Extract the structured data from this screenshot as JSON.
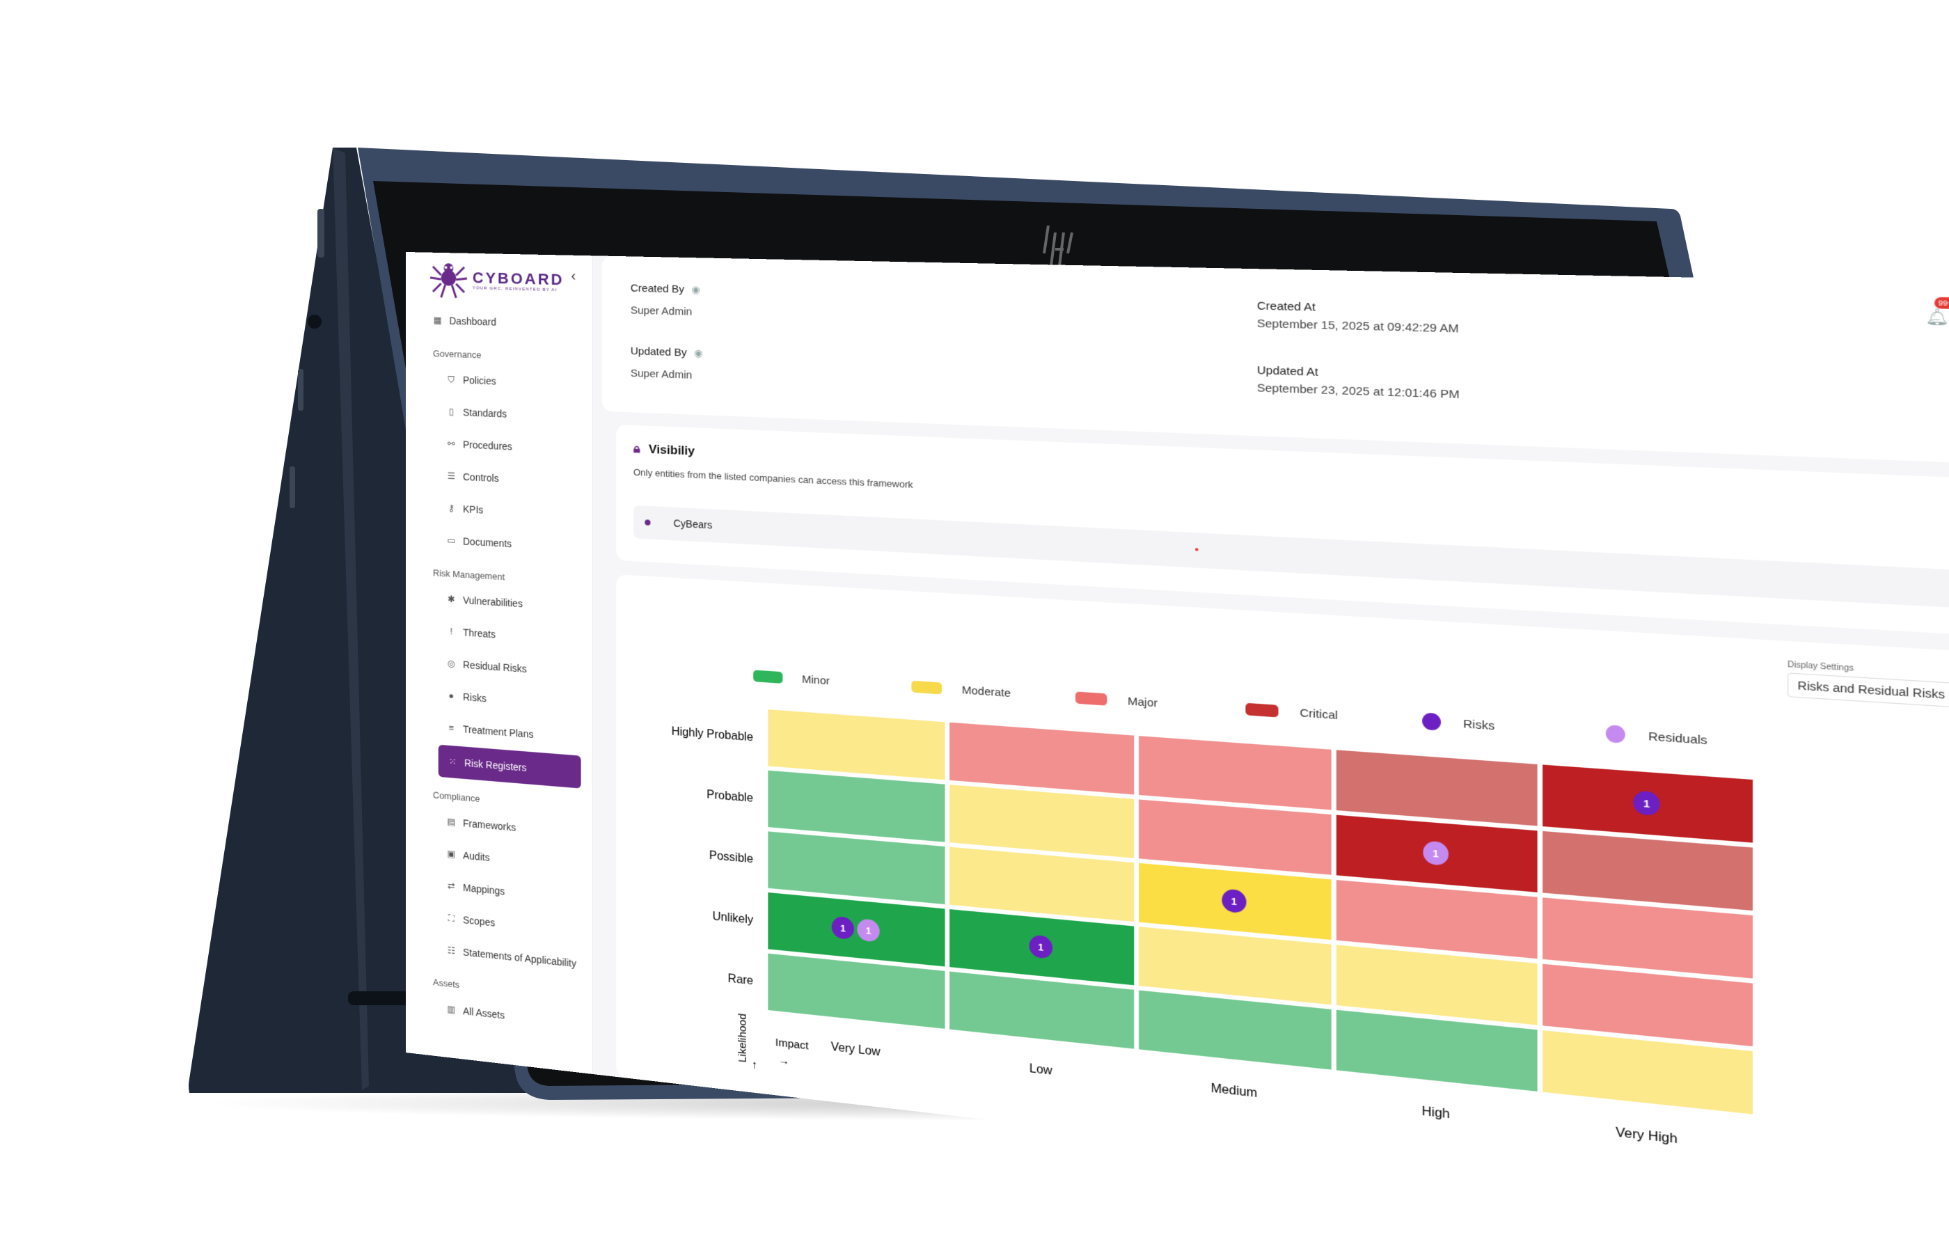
{
  "app": {
    "brand": "CYBOARD",
    "tagline": "YOUR GRC, REINVENTED BY AI",
    "collapse_icon": "chevron-left-icon"
  },
  "sidebar": {
    "dashboard": "Dashboard",
    "sections": [
      {
        "title": "Governance",
        "items": [
          "Policies",
          "Standards",
          "Procedures",
          "Controls",
          "KPIs",
          "Documents"
        ]
      },
      {
        "title": "Risk Management",
        "items": [
          "Vulnerabilities",
          "Threats",
          "Residual Risks",
          "Risks",
          "Treatment Plans",
          "Risk Registers"
        ]
      },
      {
        "title": "Compliance",
        "items": [
          "Frameworks",
          "Audits",
          "Mappings",
          "Scopes",
          "Statements of Applicability"
        ]
      },
      {
        "title": "Assets",
        "items": [
          "All Assets"
        ]
      }
    ],
    "active_item": "Risk Registers"
  },
  "meta": {
    "created_by_label": "Created By",
    "created_by_value": "Super Admin",
    "updated_by_label": "Updated By",
    "updated_by_value": "Super Admin",
    "created_at_label": "Created At",
    "created_at_value": "September 15, 2025 at 09:42:29 AM",
    "updated_at_label": "Updated At",
    "updated_at_value": "September 23, 2025 at 12:01:46 PM",
    "notification_badge": "99+",
    "avatar_icon": "user-icon"
  },
  "visibility": {
    "title": "Visibiliy",
    "description": "Only entities from the listed companies can access this framework",
    "entities": [
      "CyBears"
    ]
  },
  "display_settings": {
    "label": "Display Settings",
    "selected": "Risks and Residual Risks"
  },
  "legend": [
    {
      "label": "Minor",
      "color": "#2fb55a",
      "shape": "swatch"
    },
    {
      "label": "Moderate",
      "color": "#f7d94c",
      "shape": "swatch"
    },
    {
      "label": "Major",
      "color": "#ee6e6e",
      "shape": "swatch"
    },
    {
      "label": "Critical",
      "color": "#c53030",
      "shape": "swatch"
    },
    {
      "label": "Risks",
      "color": "#6c1fc2",
      "shape": "dot"
    },
    {
      "label": "Residuals",
      "color": "#c58af0",
      "shape": "dot"
    }
  ],
  "chart_data": {
    "type": "heatmap",
    "likelihood_label": "Likelihood",
    "impact_label": "Impact",
    "rows": [
      "Highly Probable",
      "Probable",
      "Possible",
      "Unlikely",
      "Rare"
    ],
    "columns": [
      "Very Low",
      "Low",
      "Medium",
      "High",
      "Very High"
    ],
    "severity_colors": {
      "minor": "#74c993",
      "minor_hi": "#1fa64c",
      "moderate": "#fce98c",
      "moderate_hi": "#fbdd44",
      "major": "#f28f8f",
      "major_hi": "#d3716f",
      "critical": "#bd1f22"
    },
    "cells": [
      [
        "moderate",
        "major",
        "major",
        "major_hi",
        "critical"
      ],
      [
        "minor",
        "moderate",
        "major",
        "critical",
        "major_hi"
      ],
      [
        "minor",
        "moderate",
        "moderate_hi",
        "major",
        "major"
      ],
      [
        "minor_hi",
        "minor_hi",
        "moderate",
        "moderate",
        "major"
      ],
      [
        "minor",
        "minor",
        "minor",
        "minor",
        "moderate"
      ]
    ],
    "markers": [
      {
        "row": "Highly Probable",
        "col": "Very High",
        "kind": "risk",
        "count": 1
      },
      {
        "row": "Probable",
        "col": "High",
        "kind": "residual",
        "count": 1
      },
      {
        "row": "Possible",
        "col": "Medium",
        "kind": "risk",
        "count": 1
      },
      {
        "row": "Unlikely",
        "col": "Very Low",
        "kind": "risk",
        "count": 1
      },
      {
        "row": "Unlikely",
        "col": "Very Low",
        "kind": "residual",
        "count": 1
      },
      {
        "row": "Unlikely",
        "col": "Low",
        "kind": "risk",
        "count": 1
      }
    ]
  }
}
